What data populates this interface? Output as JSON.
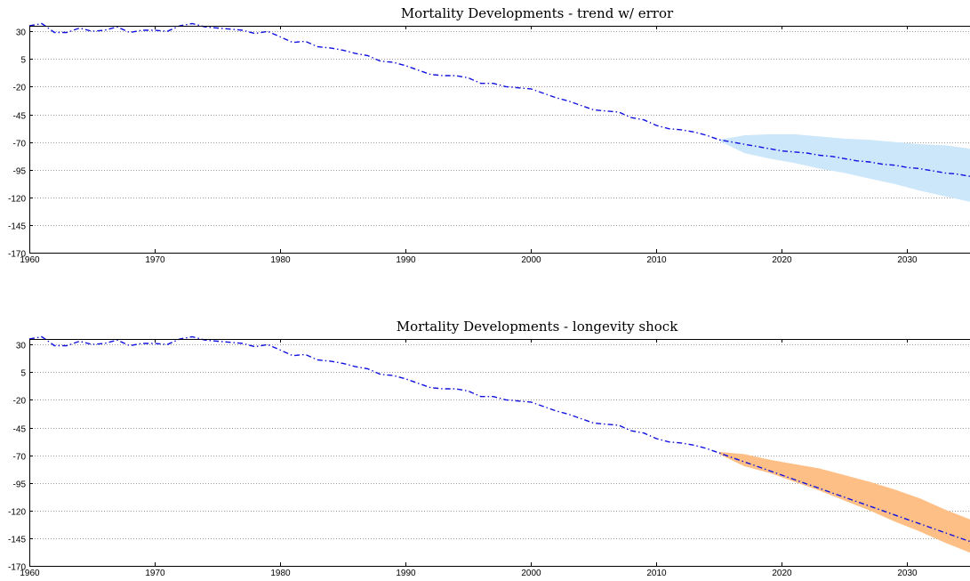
{
  "chart_data": [
    {
      "type": "line",
      "title": "Mortality Developments - trend w/ error",
      "xlim": [
        1960,
        2035
      ],
      "ylim": [
        -170,
        35
      ],
      "xticks": [
        1960,
        1970,
        1980,
        1990,
        2000,
        2010,
        2020,
        2030
      ],
      "yticks": [
        30,
        5,
        -20,
        -45,
        -70,
        -95,
        -120,
        -145,
        -170
      ],
      "grid": true,
      "series": [
        {
          "color": "#1010e0",
          "style": "dash-dot",
          "x": [
            1960,
            1961,
            1962,
            1963,
            1964,
            1965,
            1966,
            1967,
            1968,
            1969,
            1970,
            1971,
            1972,
            1973,
            1974,
            1975,
            1976,
            1977,
            1978,
            1979,
            1980,
            1981,
            1982,
            1983,
            1984,
            1985,
            1986,
            1987,
            1988,
            1989,
            1990,
            1991,
            1992,
            1993,
            1994,
            1995,
            1996,
            1997,
            1998,
            1999,
            2000,
            2001,
            2002,
            2003,
            2004,
            2005,
            2006,
            2007,
            2008,
            2009,
            2010,
            2011,
            2012,
            2013,
            2014,
            2015,
            2016,
            2017,
            2018,
            2019,
            2020,
            2021,
            2022,
            2023,
            2024,
            2025,
            2026,
            2027,
            2028,
            2029,
            2030,
            2031,
            2032,
            2033,
            2034,
            2035
          ],
          "values": [
            35,
            37,
            29,
            29,
            33,
            30,
            31,
            34,
            29,
            31,
            31,
            30,
            35,
            37,
            34,
            33,
            32,
            31,
            28,
            30,
            25,
            20,
            21,
            16,
            15,
            13,
            10,
            8,
            3,
            2,
            -1,
            -5,
            -9,
            -10,
            -10,
            -12,
            -17,
            -17,
            -20,
            -21,
            -22,
            -26,
            -30,
            -33,
            -37,
            -41,
            -42,
            -43,
            -48,
            -50,
            -55,
            -58,
            -59,
            -61,
            -64,
            -68,
            -70,
            -72,
            -74,
            -76,
            -78,
            -79,
            -80,
            -82,
            -83,
            -85,
            -87,
            -88,
            -90,
            -91,
            -93,
            -94,
            -96,
            -98,
            -99,
            -101
          ]
        }
      ],
      "band": {
        "color": "#cce6fa",
        "x": [
          2015,
          2017,
          2019,
          2021,
          2023,
          2025,
          2027,
          2029,
          2031,
          2033,
          2035
        ],
        "upper": [
          -68,
          -64,
          -63,
          -63,
          -65,
          -67,
          -68,
          -70,
          -72,
          -73,
          -76
        ],
        "lower": [
          -69,
          -80,
          -85,
          -89,
          -94,
          -98,
          -103,
          -108,
          -114,
          -119,
          -124
        ]
      }
    },
    {
      "type": "line",
      "title": "Mortality Developments - longevity shock",
      "xlim": [
        1960,
        2035
      ],
      "ylim": [
        -170,
        35
      ],
      "xticks": [
        1960,
        1970,
        1980,
        1990,
        2000,
        2010,
        2020,
        2030
      ],
      "yticks": [
        30,
        5,
        -20,
        -45,
        -70,
        -95,
        -120,
        -145,
        -170
      ],
      "grid": true,
      "series": [
        {
          "color": "#1010e0",
          "style": "dash-dot",
          "x": [
            1960,
            1961,
            1962,
            1963,
            1964,
            1965,
            1966,
            1967,
            1968,
            1969,
            1970,
            1971,
            1972,
            1973,
            1974,
            1975,
            1976,
            1977,
            1978,
            1979,
            1980,
            1981,
            1982,
            1983,
            1984,
            1985,
            1986,
            1987,
            1988,
            1989,
            1990,
            1991,
            1992,
            1993,
            1994,
            1995,
            1996,
            1997,
            1998,
            1999,
            2000,
            2001,
            2002,
            2003,
            2004,
            2005,
            2006,
            2007,
            2008,
            2009,
            2010,
            2011,
            2012,
            2013,
            2014,
            2015,
            2016,
            2017,
            2018,
            2019,
            2020,
            2021,
            2022,
            2023,
            2024,
            2025,
            2026,
            2027,
            2028,
            2029,
            2030,
            2031,
            2032,
            2033,
            2034,
            2035
          ],
          "values": [
            35,
            37,
            29,
            29,
            33,
            30,
            31,
            34,
            29,
            31,
            31,
            30,
            35,
            37,
            34,
            33,
            32,
            31,
            28,
            30,
            25,
            20,
            21,
            16,
            15,
            13,
            10,
            8,
            3,
            2,
            -1,
            -5,
            -9,
            -10,
            -10,
            -12,
            -17,
            -17,
            -20,
            -21,
            -22,
            -26,
            -30,
            -33,
            -37,
            -41,
            -42,
            -43,
            -48,
            -50,
            -55,
            -58,
            -59,
            -61,
            -64,
            -68,
            -72,
            -76,
            -80,
            -84,
            -88,
            -92,
            -96,
            -100,
            -104,
            -108,
            -112,
            -116,
            -120,
            -124,
            -128,
            -132,
            -136,
            -140,
            -144,
            -148
          ]
        }
      ],
      "band": {
        "color": "#fdbf85",
        "x": [
          2015,
          2017,
          2019,
          2021,
          2023,
          2025,
          2027,
          2029,
          2031,
          2033,
          2035
        ],
        "upper": [
          -67,
          -69,
          -74,
          -78,
          -82,
          -88,
          -94,
          -101,
          -109,
          -119,
          -128
        ],
        "lower": [
          -69,
          -80,
          -86,
          -94,
          -102,
          -111,
          -120,
          -130,
          -139,
          -149,
          -158
        ]
      }
    }
  ]
}
